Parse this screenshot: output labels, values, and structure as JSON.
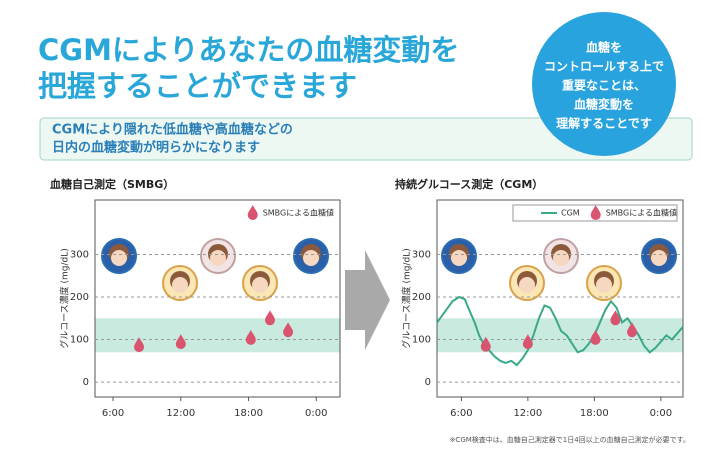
{
  "header": {
    "title_lines": [
      "CGMによりあなたの血糖変動を",
      "把握することができます"
    ],
    "callout_lines": [
      "血糖を",
      "コントロールする上で",
      "重要なことは、",
      "血糖変動を",
      "理解することです"
    ],
    "subtitle_lines": [
      "CGMにより隠れた低血糖や高血糖などの",
      "日内の血糖変動が明らかになります"
    ]
  },
  "footnote": "※CGM検査中は、血糖自己測定器で1日4回以上の血糖自己測定が必要です。",
  "chart_data": [
    {
      "type": "scatter",
      "title": "血糖自己測定（SMBG）",
      "ylabel": "グルコース濃度 (mg/dL)",
      "xlim": [
        4.4,
        26.1
      ],
      "ylim": [
        -35,
        428
      ],
      "xticks": [
        {
          "value": 6,
          "label": "6:00"
        },
        {
          "value": 12,
          "label": "12:00"
        },
        {
          "value": 18,
          "label": "18:00"
        },
        {
          "value": 24,
          "label": "0:00"
        }
      ],
      "yticks": [
        0,
        100,
        200,
        300
      ],
      "grid": true,
      "target_range": [
        70,
        150
      ],
      "band_color": "#c9eadf",
      "series": [
        {
          "name": "SMBGによる血糖値",
          "color": "#d9556f",
          "mark": "drop",
          "x": [
            8.3,
            12,
            18.2,
            19.9,
            21.5
          ],
          "values": [
            87,
            94,
            104,
            150,
            122
          ]
        }
      ]
    },
    {
      "type": "line",
      "title": "持続グルコース測定（CGM）",
      "ylabel": "グルコース濃度 (mg/dL)",
      "xlim": [
        3.8,
        26
      ],
      "ylim": [
        -35,
        428
      ],
      "xticks": [
        {
          "value": 6,
          "label": "6:00"
        },
        {
          "value": 12,
          "label": "12:00"
        },
        {
          "value": 18,
          "label": "18:00"
        },
        {
          "value": 24,
          "label": "0:00"
        }
      ],
      "yticks": [
        0,
        100,
        200,
        300
      ],
      "grid": true,
      "target_range": [
        70,
        150
      ],
      "band_color": "#c9eadf",
      "series": [
        {
          "name": "CGM",
          "color": "#3aa98a",
          "mark": "line",
          "x": [
            3.8,
            4.5,
            5.2,
            5.8,
            6.3,
            6.7,
            7.2,
            7.6,
            8,
            8.5,
            9,
            9.5,
            10,
            10.5,
            11,
            11.5,
            12,
            12.5,
            13,
            13.5,
            14,
            14.5,
            15,
            15.5,
            16,
            16.5,
            17,
            17.5,
            18,
            18.5,
            19,
            19.5,
            20,
            20.5,
            21,
            21.5,
            22,
            22.5,
            23,
            23.5,
            24,
            24.5,
            25,
            25.5,
            26
          ],
          "values": [
            140,
            165,
            190,
            200,
            195,
            170,
            140,
            110,
            90,
            75,
            60,
            50,
            45,
            50,
            40,
            55,
            75,
            110,
            150,
            180,
            175,
            150,
            120,
            110,
            90,
            70,
            75,
            90,
            110,
            140,
            170,
            190,
            175,
            140,
            150,
            130,
            110,
            85,
            70,
            80,
            95,
            110,
            100,
            115,
            130
          ]
        },
        {
          "name": "SMBGによる血糖値",
          "color": "#d9556f",
          "mark": "drop",
          "x": [
            8.2,
            12,
            18.1,
            19.9,
            21.4
          ],
          "values": [
            88,
            94,
            104,
            150,
            122
          ]
        }
      ]
    }
  ]
}
